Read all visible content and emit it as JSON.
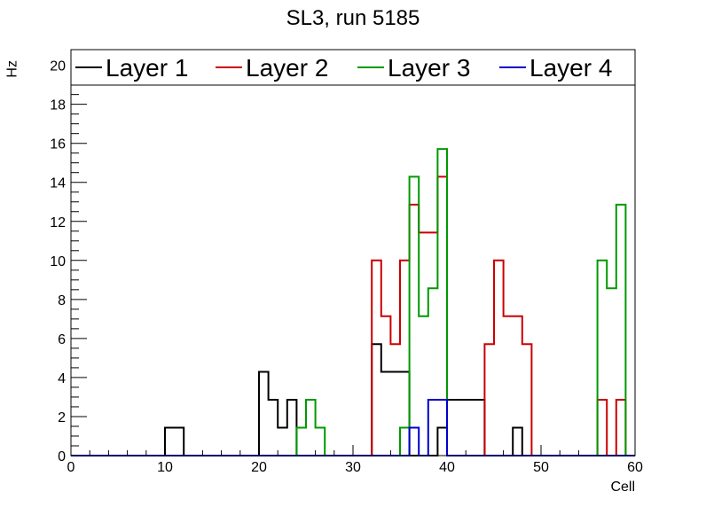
{
  "chart_data": {
    "type": "histogram-step",
    "title": "SL3, run 5185",
    "xlabel": "Cell",
    "ylabel": "Hz",
    "xlim": [
      0,
      60
    ],
    "ylim": [
      0,
      20.8
    ],
    "x_ticks": [
      0,
      10,
      20,
      30,
      40,
      50,
      60
    ],
    "y_ticks": [
      0,
      2,
      4,
      6,
      8,
      10,
      12,
      14,
      16,
      18,
      20
    ],
    "bin_width": 1,
    "legend_position": "top",
    "series": [
      {
        "name": "Layer 1",
        "color": "#000000",
        "values": [
          0,
          0,
          0,
          0,
          0,
          0,
          0,
          0,
          0,
          0,
          1.43,
          1.43,
          0,
          0,
          0,
          0,
          0,
          0,
          0,
          0,
          4.29,
          2.86,
          1.43,
          2.86,
          0,
          0,
          0,
          0,
          0,
          0,
          0,
          0,
          5.71,
          4.29,
          4.29,
          4.29,
          0,
          0,
          0,
          1.43,
          2.86,
          2.86,
          2.86,
          2.86,
          0,
          0,
          0,
          1.43,
          0,
          0,
          0,
          0,
          0,
          0,
          0,
          0,
          0,
          0,
          0,
          0
        ]
      },
      {
        "name": "Layer 2",
        "color": "#cc0000",
        "values": [
          0,
          0,
          0,
          0,
          0,
          0,
          0,
          0,
          0,
          0,
          0,
          0,
          0,
          0,
          0,
          0,
          0,
          0,
          0,
          0,
          0,
          0,
          0,
          0,
          0,
          0,
          0,
          0,
          0,
          0,
          0,
          0,
          10,
          7.14,
          5.71,
          10,
          12.86,
          11.43,
          11.43,
          14.29,
          0,
          0,
          0,
          0,
          5.71,
          10,
          7.14,
          7.14,
          5.71,
          0,
          0,
          0,
          0,
          0,
          0,
          0,
          2.86,
          0,
          2.86,
          0
        ]
      },
      {
        "name": "Layer 3",
        "color": "#009900",
        "values": [
          0,
          0,
          0,
          0,
          0,
          0,
          0,
          0,
          0,
          0,
          0,
          0,
          0,
          0,
          0,
          0,
          0,
          0,
          0,
          0,
          0,
          0,
          0,
          0,
          1.43,
          2.86,
          1.43,
          0,
          0,
          0,
          0,
          0,
          0,
          0,
          0,
          1.43,
          14.29,
          7.14,
          8.57,
          15.71,
          0,
          0,
          0,
          0,
          0,
          0,
          0,
          0,
          0,
          0,
          0,
          0,
          0,
          0,
          0,
          0,
          10,
          8.57,
          12.86,
          0
        ]
      },
      {
        "name": "Layer 4",
        "color": "#0000cc",
        "values": [
          0,
          0,
          0,
          0,
          0,
          0,
          0,
          0,
          0,
          0,
          0,
          0,
          0,
          0,
          0,
          0,
          0,
          0,
          0,
          0,
          0,
          0,
          0,
          0,
          0,
          0,
          0,
          0,
          0,
          0,
          0,
          0,
          0,
          0,
          0,
          0,
          1.43,
          0,
          2.86,
          2.86,
          0,
          0,
          0,
          0,
          0,
          0,
          0,
          0,
          0,
          0,
          0,
          0,
          0,
          0,
          0,
          0,
          0,
          0,
          0,
          0
        ]
      }
    ]
  }
}
